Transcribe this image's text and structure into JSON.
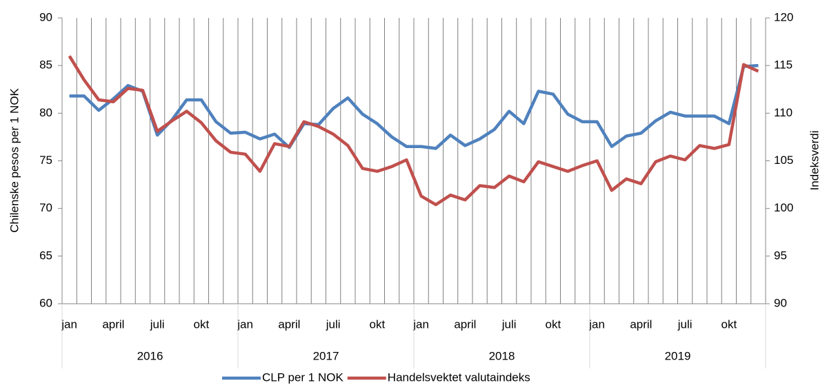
{
  "chart_data": {
    "type": "line",
    "y_label": "Chilenske pesos per 1 NOK",
    "y2_label": "Indeksverdi",
    "categories": [
      "jan",
      null,
      null,
      "april",
      null,
      null,
      "juli",
      null,
      null,
      "okt",
      null,
      null,
      "jan",
      null,
      null,
      "april",
      null,
      null,
      "juli",
      null,
      null,
      "okt",
      null,
      null,
      "jan",
      null,
      null,
      "april",
      null,
      null,
      "juli",
      null,
      null,
      "okt",
      null,
      null,
      "jan",
      null,
      null,
      "april",
      null,
      null,
      "juli",
      null,
      null,
      "okt",
      null,
      null
    ],
    "year_groups": [
      "2016",
      "2017",
      "2018",
      "2019"
    ],
    "ylim": [
      60,
      90
    ],
    "yticks": [
      60,
      65,
      70,
      75,
      80,
      85,
      90
    ],
    "y2lim": [
      90,
      120
    ],
    "y2ticks": [
      90,
      95,
      100,
      105,
      110,
      115,
      120
    ],
    "legend": "bottom",
    "series": [
      {
        "name": "CLP per 1 NOK",
        "color": "#4f81bd",
        "axis": "y",
        "values": [
          81.8,
          81.8,
          80.3,
          81.5,
          82.9,
          82.3,
          77.7,
          79.3,
          81.4,
          81.4,
          79.1,
          77.9,
          78.0,
          77.3,
          77.8,
          76.4,
          78.9,
          78.8,
          80.5,
          81.6,
          79.9,
          78.9,
          77.5,
          76.5,
          76.5,
          76.3,
          77.7,
          76.6,
          77.3,
          78.3,
          80.2,
          78.9,
          82.3,
          82.0,
          79.9,
          79.1,
          79.1,
          76.5,
          77.6,
          77.9,
          79.2,
          80.1,
          79.7,
          79.7,
          79.7,
          78.9,
          84.9,
          85.0
        ]
      },
      {
        "name": "Handelsvektet valutaindeks",
        "color": "#c0504d",
        "axis": "y2",
        "values": [
          116.0,
          113.5,
          111.4,
          111.2,
          112.6,
          112.4,
          108.1,
          109.2,
          110.2,
          109.0,
          107.1,
          105.9,
          105.7,
          103.9,
          106.8,
          106.5,
          109.1,
          108.6,
          107.8,
          106.6,
          104.2,
          103.9,
          104.4,
          105.1,
          101.3,
          100.4,
          101.4,
          100.9,
          102.4,
          102.2,
          103.4,
          102.8,
          104.9,
          104.4,
          103.9,
          104.5,
          105.0,
          101.9,
          103.1,
          102.6,
          104.9,
          105.5,
          105.1,
          106.6,
          106.3,
          106.7,
          115.1,
          114.4
        ]
      }
    ]
  }
}
